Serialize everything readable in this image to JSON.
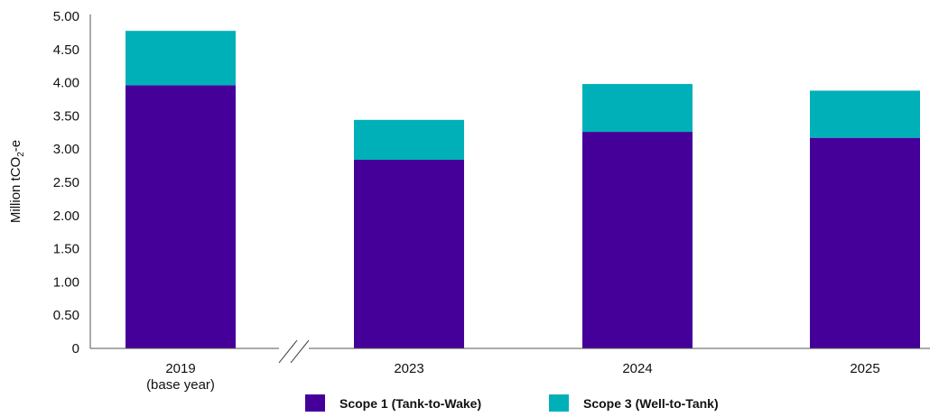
{
  "chart_data": {
    "type": "bar",
    "stacked": true,
    "categories": [
      "2019",
      "2023",
      "2024",
      "2025"
    ],
    "category_sublabels": [
      "(base year)",
      "",
      "",
      ""
    ],
    "series": [
      {
        "name": "Scope 1  (Tank-to-Wake)",
        "color": "#45009a",
        "values": [
          3.96,
          2.84,
          3.26,
          3.17
        ]
      },
      {
        "name": "Scope 3  (Well-to-Tank)",
        "color": "#00b0b9",
        "values": [
          0.82,
          0.6,
          0.72,
          0.71
        ]
      }
    ],
    "ylabel_parts": {
      "prefix": "Million tCO",
      "sub": "2",
      "suffix": "-e"
    },
    "yticks": [
      "0",
      "0.50",
      "1.00",
      "1.50",
      "2.00",
      "2.50",
      "3.00",
      "3.50",
      "4.00",
      "4.50",
      "5.00"
    ],
    "ylim": [
      0,
      5
    ],
    "axis_break_between": [
      "2019",
      "2023"
    ],
    "grid": false,
    "legend_position": "bottom-center"
  }
}
